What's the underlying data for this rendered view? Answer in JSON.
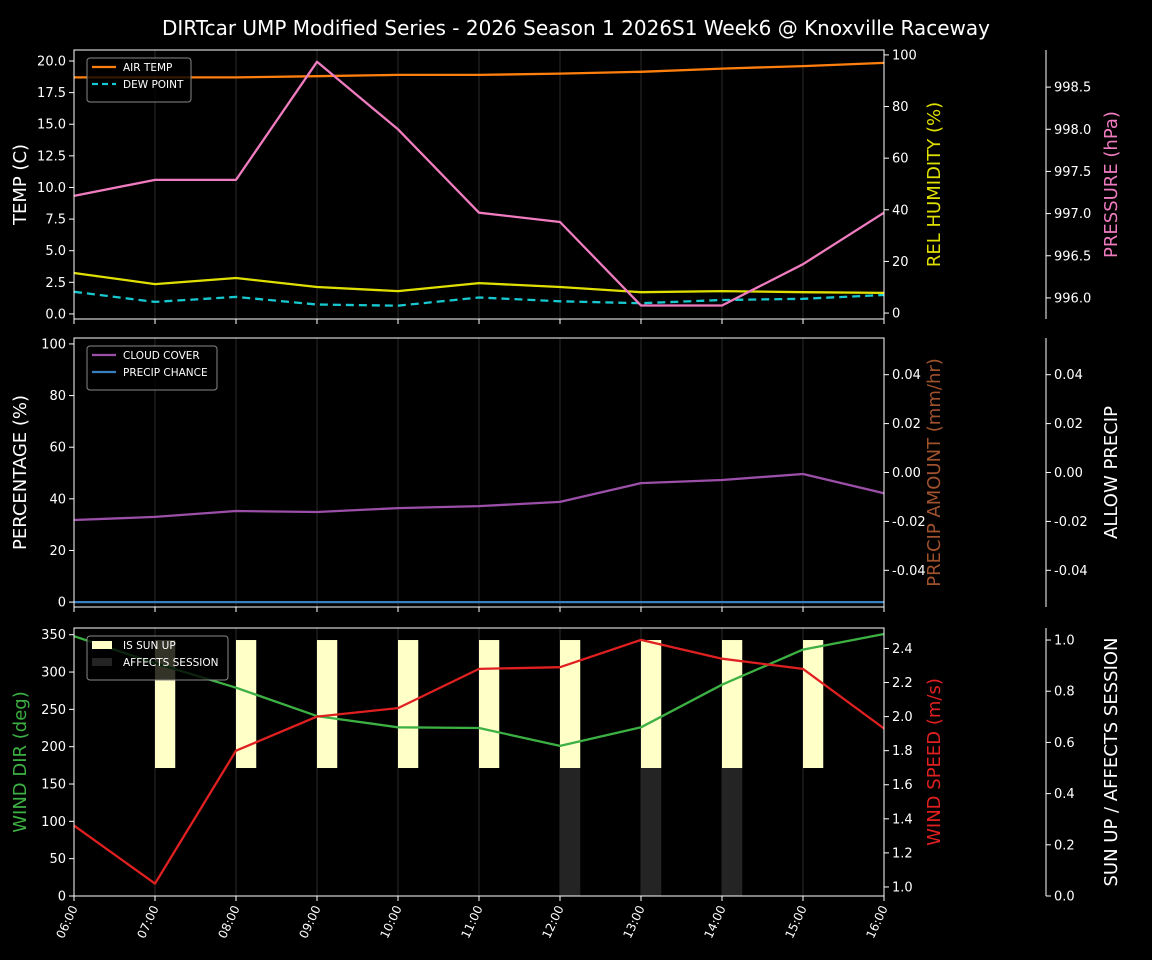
{
  "title": "DIRTcar UMP Modified Series - 2026 Season 1 2026S1 Week6 @ Knoxville Raceway",
  "chart_data": [
    {
      "type": "line",
      "x": [
        "06:00",
        "07:00",
        "08:00",
        "09:00",
        "10:00",
        "11:00",
        "12:00",
        "13:00",
        "14:00",
        "15:00",
        "16:00"
      ],
      "xlabel": "",
      "axes": [
        {
          "side": "left",
          "label": "TEMP (C)",
          "label_color": "#ffffff",
          "ylim": [
            -0.4,
            20.87
          ],
          "ticks": [
            0.0,
            2.5,
            5.0,
            7.5,
            10.0,
            12.5,
            15.0,
            17.5,
            20.0
          ],
          "decimals": 1
        },
        {
          "side": "right",
          "label": "REL HUMIDITY (%)",
          "label_color": "#e0e000",
          "ylim": [
            -2.3,
            101.9
          ],
          "ticks": [
            0,
            20,
            40,
            60,
            80,
            100
          ],
          "decimals": 0
        },
        {
          "side": "right-outer",
          "label": "PRESSURE (hPa)",
          "label_color": "#f07cc0",
          "ylim": [
            995.75,
            998.94
          ],
          "ticks": [
            996.0,
            996.5,
            997.0,
            997.5,
            998.0,
            998.5
          ],
          "decimals": 1
        }
      ],
      "series": [
        {
          "name": "AIR TEMP",
          "axis": 0,
          "color": "#ff7f0e",
          "dash": false,
          "legend": true,
          "values": [
            18.7,
            18.7,
            18.7,
            18.8,
            18.9,
            18.9,
            19.0,
            19.15,
            19.4,
            19.6,
            19.85
          ]
        },
        {
          "name": "DEW POINT",
          "axis": 0,
          "color": "#17c8d0",
          "dash": true,
          "legend": true,
          "values": [
            1.75,
            0.95,
            1.35,
            0.75,
            0.65,
            1.3,
            1.0,
            0.85,
            1.1,
            1.2,
            1.5
          ]
        },
        {
          "axis": 1,
          "color": "#e0e000",
          "dash": false,
          "legend": false,
          "values": [
            15.5,
            11.2,
            13.6,
            10.1,
            8.5,
            11.6,
            10.1,
            8.1,
            8.5,
            8.1,
            7.8
          ]
        },
        {
          "axis": 2,
          "color": "#f07cc0",
          "dash": false,
          "legend": false,
          "values": [
            997.21,
            997.4,
            997.4,
            998.8,
            998.0,
            997.01,
            996.9,
            995.91,
            995.91,
            996.4,
            997.01
          ]
        }
      ],
      "legend_placement": "upper-left",
      "grid": "vertical"
    },
    {
      "type": "line",
      "x": [
        "06:00",
        "07:00",
        "08:00",
        "09:00",
        "10:00",
        "11:00",
        "12:00",
        "13:00",
        "14:00",
        "15:00",
        "16:00"
      ],
      "axes": [
        {
          "side": "left",
          "label": "PERCENTAGE (%)",
          "label_color": "#ffffff",
          "ylim": [
            -1.9,
            102.3
          ],
          "ticks": [
            0,
            20,
            40,
            60,
            80,
            100
          ],
          "decimals": 0
        },
        {
          "side": "right",
          "label": "PRECIP AMOUNT (mm/hr)",
          "label_color": "#a0522d",
          "ylim": [
            -0.055,
            0.055
          ],
          "ticks": [
            -0.04,
            -0.02,
            0.0,
            0.02,
            0.04
          ],
          "decimals": 2
        },
        {
          "side": "right-outer",
          "label": "ALLOW PRECIP",
          "label_color": "#ffffff",
          "ylim": [
            -0.055,
            0.055
          ],
          "ticks": [
            -0.04,
            -0.02,
            0.0,
            0.02,
            0.04
          ],
          "decimals": 2
        }
      ],
      "series": [
        {
          "name": "CLOUD COVER",
          "axis": 0,
          "color": "#9b4fa8",
          "dash": false,
          "legend": true,
          "values": [
            31.8,
            33.0,
            35.3,
            34.9,
            36.4,
            37.2,
            38.8,
            46.1,
            47.3,
            49.6,
            42.2
          ]
        },
        {
          "name": "PRECIP CHANCE",
          "axis": 0,
          "color": "#3a80c0",
          "dash": false,
          "legend": true,
          "values": [
            0,
            0,
            0,
            0,
            0,
            0,
            0,
            0,
            0,
            0,
            0
          ]
        }
      ],
      "legend_placement": "upper-left",
      "grid": "vertical"
    },
    {
      "type": "line",
      "x": [
        "06:00",
        "07:00",
        "08:00",
        "09:00",
        "10:00",
        "11:00",
        "12:00",
        "13:00",
        "14:00",
        "15:00",
        "16:00"
      ],
      "axes": [
        {
          "side": "left",
          "label": "WIND DIR (deg)",
          "label_color": "#3cb043",
          "ylim": [
            0,
            359
          ],
          "ticks": [
            0,
            50,
            100,
            150,
            200,
            250,
            300,
            350
          ],
          "decimals": 0
        },
        {
          "side": "right",
          "label": "WIND SPEED (m/s)",
          "label_color": "#e02020",
          "ylim": [
            0.947,
            2.52
          ],
          "ticks": [
            1.0,
            1.2,
            1.4,
            1.6,
            1.8,
            2.0,
            2.2,
            2.4
          ],
          "decimals": 1
        },
        {
          "side": "right-outer",
          "label": "SUN UP / AFFECTS SESSION",
          "label_color": "#ffffff",
          "ylim": [
            0,
            1.047
          ],
          "ticks": [
            0.0,
            0.2,
            0.4,
            0.6,
            0.8,
            1.0
          ],
          "decimals": 1
        }
      ],
      "bars": [
        {
          "name": "IS SUN UP",
          "axis": 2,
          "color": "#ffffc8",
          "base": 0.5,
          "height": 0.5,
          "values": [
            0,
            1,
            1,
            1,
            1,
            1,
            1,
            1,
            1,
            1,
            0
          ]
        },
        {
          "name": "AFFECTS SESSION",
          "axis": 2,
          "color": "#242424",
          "base": 0,
          "height": 0.5,
          "values": [
            0,
            0,
            0,
            0,
            0,
            0,
            1,
            1,
            1,
            0,
            0
          ]
        }
      ],
      "series": [
        {
          "axis": 0,
          "color": "#3cb043",
          "dash": false,
          "legend": false,
          "values": [
            348,
            312,
            279,
            241,
            226,
            225,
            201,
            226,
            283,
            330,
            351
          ]
        },
        {
          "axis": 1,
          "color": "#e02020",
          "dash": false,
          "legend": false,
          "values": [
            1.36,
            1.02,
            1.8,
            2.0,
            2.05,
            2.28,
            2.29,
            2.45,
            2.34,
            2.28,
            1.93
          ]
        }
      ],
      "legend_placement": "upper-left",
      "grid": "vertical"
    }
  ]
}
